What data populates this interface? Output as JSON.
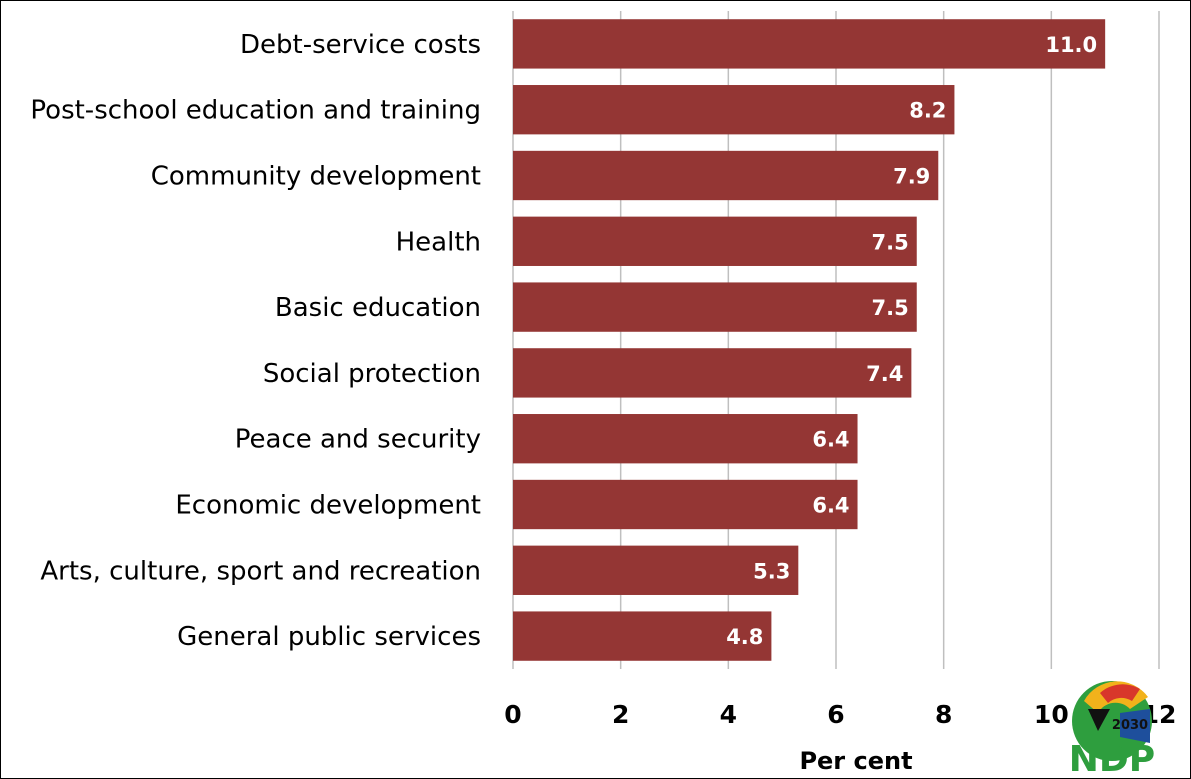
{
  "chart_data": {
    "type": "bar",
    "orientation": "horizontal",
    "categories": [
      "Debt-service costs",
      "Post-school education and training",
      "Community development",
      "Health",
      "Basic education",
      "Social protection",
      "Peace and security",
      "Economic development",
      "Arts, culture, sport and recreation",
      "General public services"
    ],
    "values": [
      11.0,
      8.2,
      7.9,
      7.5,
      7.5,
      7.4,
      6.4,
      6.4,
      5.3,
      4.8
    ],
    "value_labels": [
      "11.0",
      "8.2",
      "7.9",
      "7.5",
      "7.5",
      "7.4",
      "6.4",
      "6.4",
      "5.3",
      "4.8"
    ],
    "xlabel": "Per cent",
    "xlim": [
      0,
      12
    ],
    "x_ticks": [
      "0",
      "2",
      "4",
      "6",
      "8",
      "10",
      "12"
    ],
    "grid": "vertical",
    "bar_color": "#943634"
  },
  "logo": {
    "year": "2030",
    "text": "NDP",
    "colors": {
      "green": "#2e9e3e",
      "gold": "#f2b21b",
      "red": "#d8372b",
      "blue": "#1e4f9c",
      "black": "#111111"
    }
  }
}
